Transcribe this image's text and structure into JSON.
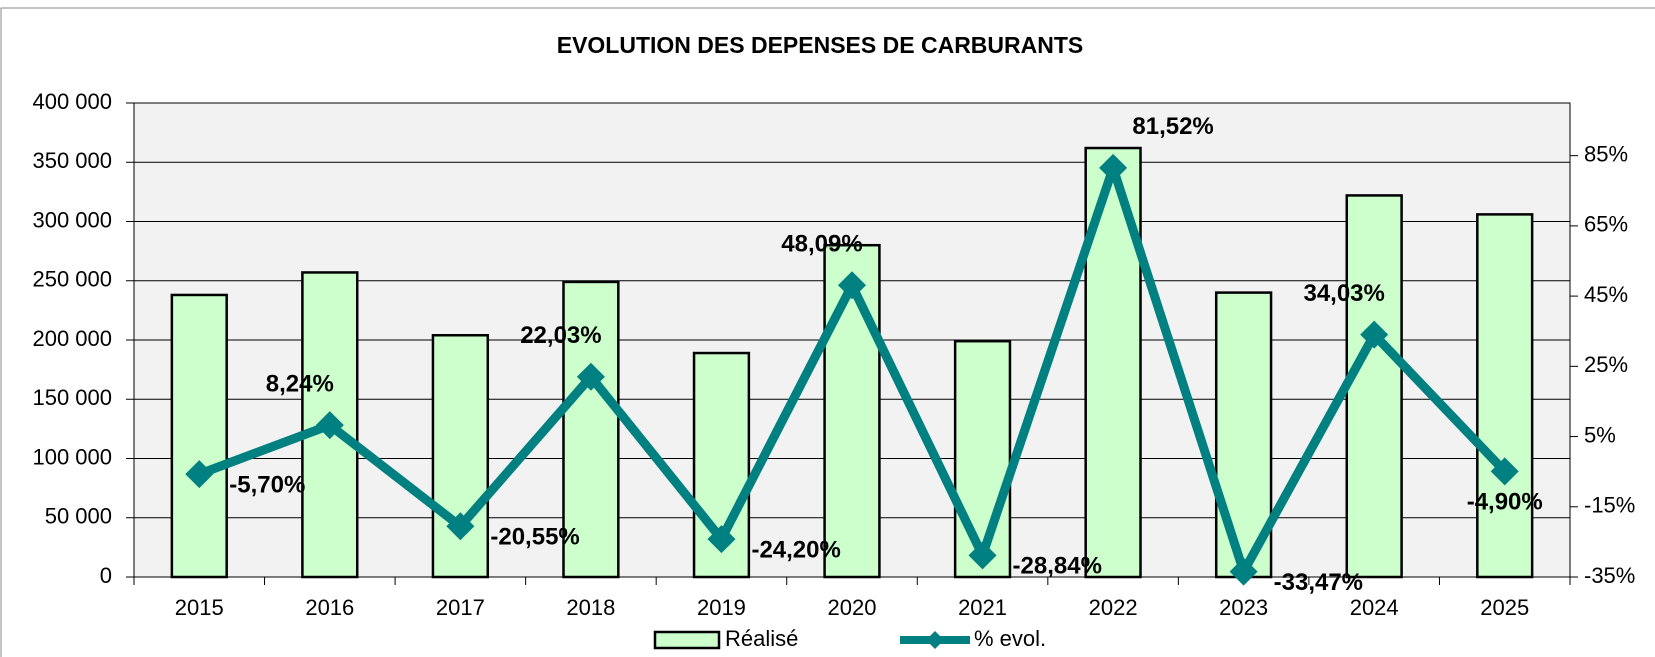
{
  "chart_data": {
    "type": "bar_line",
    "title": "EVOLUTION DES DEPENSES DE CARBURANTS",
    "categories": [
      "2015",
      "2016",
      "2017",
      "2018",
      "2019",
      "2020",
      "2021",
      "2022",
      "2023",
      "2024",
      "2025"
    ],
    "series": [
      {
        "name": "Réalisé",
        "type": "bar",
        "color": "#ccffcc",
        "values": [
          238000,
          257000,
          204000,
          249000,
          189000,
          280000,
          199000,
          362000,
          240000,
          322000,
          306000
        ]
      },
      {
        "name": "% evol.",
        "type": "line",
        "axis": "y2",
        "color": "#008080",
        "values": [
          -5.7,
          8.24,
          -20.55,
          22.03,
          -24.2,
          48.09,
          -28.84,
          81.52,
          -33.47,
          34.03,
          -4.9
        ],
        "value_labels": [
          "-5,70%",
          "8,24%",
          "-20,55%",
          "22,03%",
          "-24,20%",
          "48,09%",
          "-28,84%",
          "81,52%",
          "-33,47%",
          "34,03%",
          "-4,90%"
        ]
      }
    ],
    "ylim": [
      0,
      400000
    ],
    "yticks": [
      {
        "value": 0,
        "label": "0"
      },
      {
        "value": 50000,
        "label": "50 000"
      },
      {
        "value": 100000,
        "label": "100 000"
      },
      {
        "value": 150000,
        "label": "150 000"
      },
      {
        "value": 200000,
        "label": "200 000"
      },
      {
        "value": 250000,
        "label": "250 000"
      },
      {
        "value": 300000,
        "label": "300 000"
      },
      {
        "value": 350000,
        "label": "350 000"
      },
      {
        "value": 400000,
        "label": "400 000"
      }
    ],
    "y2lim": [
      -35,
      100
    ],
    "y2ticks": [
      {
        "value": -35,
        "label": "-35%"
      },
      {
        "value": -15,
        "label": "-15%"
      },
      {
        "value": 5,
        "label": "5%"
      },
      {
        "value": 25,
        "label": "25%"
      },
      {
        "value": 45,
        "label": "45%"
      },
      {
        "value": 65,
        "label": "65%"
      },
      {
        "value": 85,
        "label": "85%"
      }
    ],
    "grid": true,
    "legend": "bottom"
  }
}
